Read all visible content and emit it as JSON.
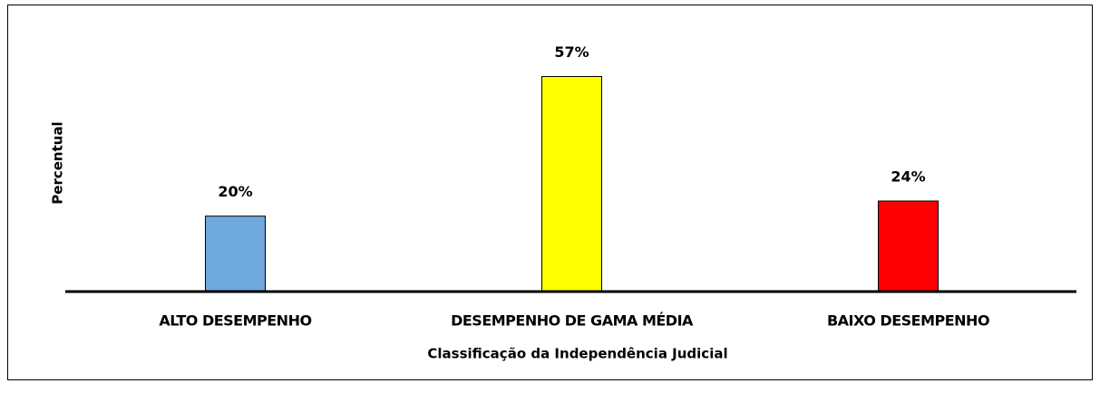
{
  "chart_data": {
    "type": "bar",
    "categories": [
      "ALTO DESEMPENHO",
      "DESEMPENHO DE GAMA MÉDIA",
      "BAIXO DESEMPENHO"
    ],
    "values": [
      20,
      57,
      24
    ],
    "value_labels": [
      "20%",
      "57%",
      "24%"
    ],
    "colors": [
      "#6fa8dc",
      "#ffff00",
      "#ff0000"
    ],
    "xlabel": "Classificação da Independência Judicial",
    "ylabel": "Percentual",
    "ylim": [
      0,
      60
    ]
  }
}
